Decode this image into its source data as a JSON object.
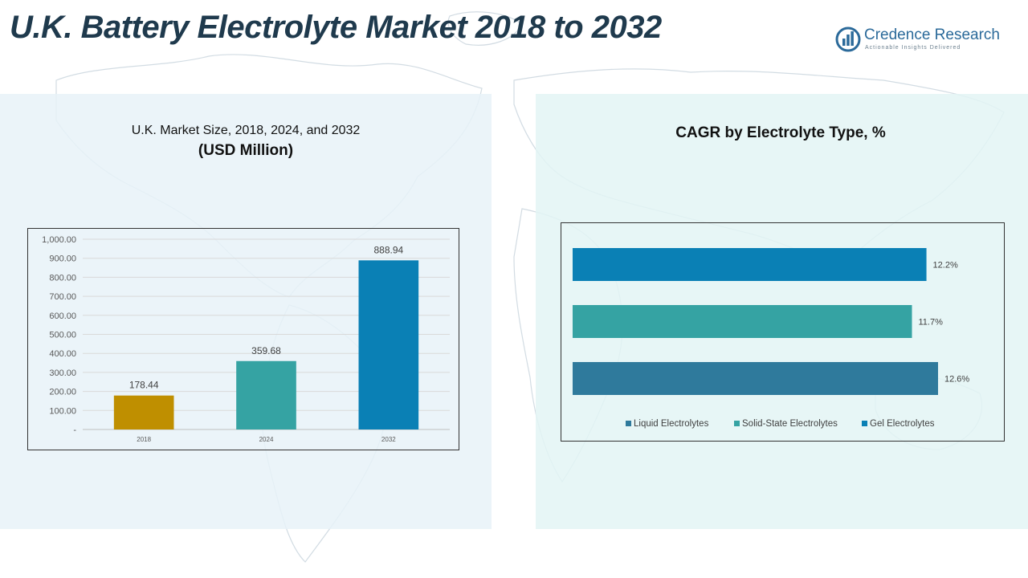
{
  "page": {
    "title": "U.K. Battery Electrolyte Market 2018 to 2032"
  },
  "logo": {
    "name": "Credence Research",
    "tagline": "Actionable Insights Delivered",
    "icon": "bar-chart-circle-icon",
    "color": "#2b6a9a"
  },
  "left_chart": {
    "title_line1": "U.K. Market Size, 2018, 2024, and 2032",
    "title_line2": "(USD Million)"
  },
  "right_chart": {
    "title": "CAGR by Electrolyte  Type, %"
  },
  "chart_data": [
    {
      "type": "bar",
      "title": "U.K. Market Size, 2018, 2024, and 2032 (USD Million)",
      "categories": [
        "2018",
        "2024",
        "2032"
      ],
      "values": [
        178.44,
        359.68,
        888.94
      ],
      "value_labels": [
        "178.44",
        "359.68",
        "888.94"
      ],
      "colors": [
        "#bf8f00",
        "#35a3a3",
        "#0a80b5"
      ],
      "ylim": [
        0,
        1000
      ],
      "yticks": [
        0,
        100,
        200,
        300,
        400,
        500,
        600,
        700,
        800,
        900,
        1000
      ],
      "ytick_labels": [
        "-",
        "100.00",
        "200.00",
        "300.00",
        "400.00",
        "500.00",
        "600.00",
        "700.00",
        "800.00",
        "900.00",
        "1,000.00"
      ],
      "grid": true,
      "legend": "none"
    },
    {
      "type": "bar",
      "orientation": "horizontal",
      "title": "CAGR by Electrolyte  Type, %",
      "categories": [
        "Gel Electrolytes",
        "Solid-State Electrolytes",
        "Liquid Electrolytes"
      ],
      "values": [
        12.2,
        11.7,
        12.6
      ],
      "value_labels": [
        "12.2%",
        "11.7%",
        "12.6%"
      ],
      "colors": [
        "#0a80b5",
        "#35a3a3",
        "#2f7a9c"
      ],
      "legend_order": [
        "Liquid Electrolytes",
        "Solid-State Electrolytes",
        "Gel Electrolytes"
      ],
      "legend_colors": [
        "#2f7a9c",
        "#35a3a3",
        "#0a80b5"
      ],
      "legend": "bottom",
      "grid": false
    }
  ]
}
